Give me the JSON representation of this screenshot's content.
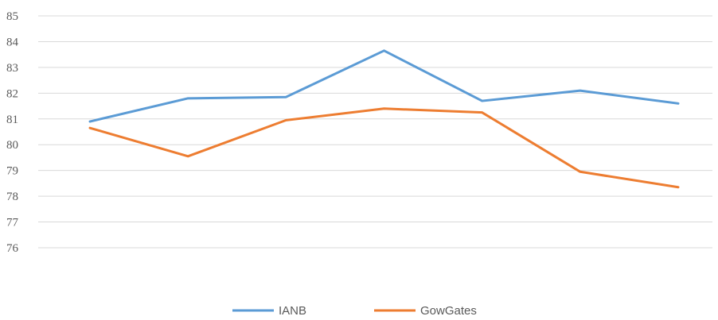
{
  "chart_data": {
    "type": "line",
    "title": "",
    "xlabel": "",
    "ylabel": "",
    "x": [
      1,
      2,
      3,
      4,
      5,
      6,
      7
    ],
    "ylim": [
      76,
      85
    ],
    "yticks": [
      76,
      77,
      78,
      79,
      80,
      81,
      82,
      83,
      84,
      85
    ],
    "grid": true,
    "legend_position": "bottom",
    "series": [
      {
        "name": "IANB",
        "color": "#5b9bd5",
        "values": [
          80.9,
          81.8,
          81.85,
          83.65,
          81.7,
          82.1,
          81.6
        ]
      },
      {
        "name": "GowGates",
        "color": "#ed7d31",
        "values": [
          80.65,
          79.55,
          80.95,
          81.4,
          81.25,
          78.95,
          78.35
        ]
      }
    ]
  }
}
